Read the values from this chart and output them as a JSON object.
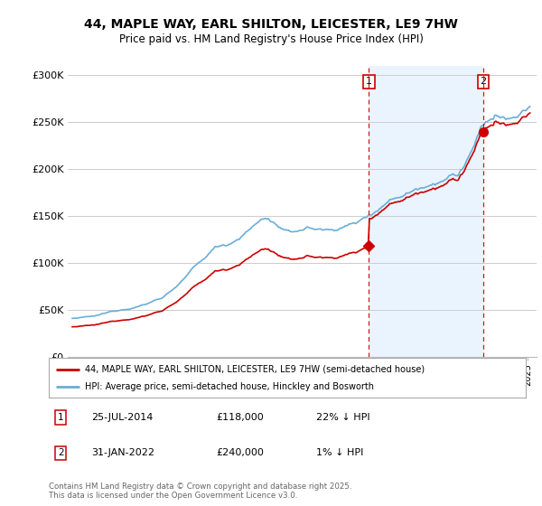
{
  "title": "44, MAPLE WAY, EARL SHILTON, LEICESTER, LE9 7HW",
  "subtitle": "Price paid vs. HM Land Registry's House Price Index (HPI)",
  "legend_line1": "44, MAPLE WAY, EARL SHILTON, LEICESTER, LE9 7HW (semi-detached house)",
  "legend_line2": "HPI: Average price, semi-detached house, Hinckley and Bosworth",
  "annotation1_date": "25-JUL-2014",
  "annotation1_price": "£118,000",
  "annotation1_note": "22% ↓ HPI",
  "annotation2_date": "31-JAN-2022",
  "annotation2_price": "£240,000",
  "annotation2_note": "1% ↓ HPI",
  "footer": "Contains HM Land Registry data © Crown copyright and database right 2025.\nThis data is licensed under the Open Government Licence v3.0.",
  "hpi_color": "#6baed6",
  "price_color": "#cc0000",
  "annotation_color": "#cc0000",
  "shade_color": "#ddeeff",
  "ylim": [
    0,
    310000
  ],
  "yticks": [
    0,
    50000,
    100000,
    150000,
    200000,
    250000,
    300000
  ],
  "ytick_labels": [
    "£0",
    "£50K",
    "£100K",
    "£150K",
    "£200K",
    "£250K",
    "£300K"
  ],
  "background_color": "#ffffff",
  "grid_color": "#cccccc",
  "purchase1_year": 2014.542,
  "purchase1_price": 118000,
  "purchase2_year": 2022.083,
  "purchase2_price": 240000
}
